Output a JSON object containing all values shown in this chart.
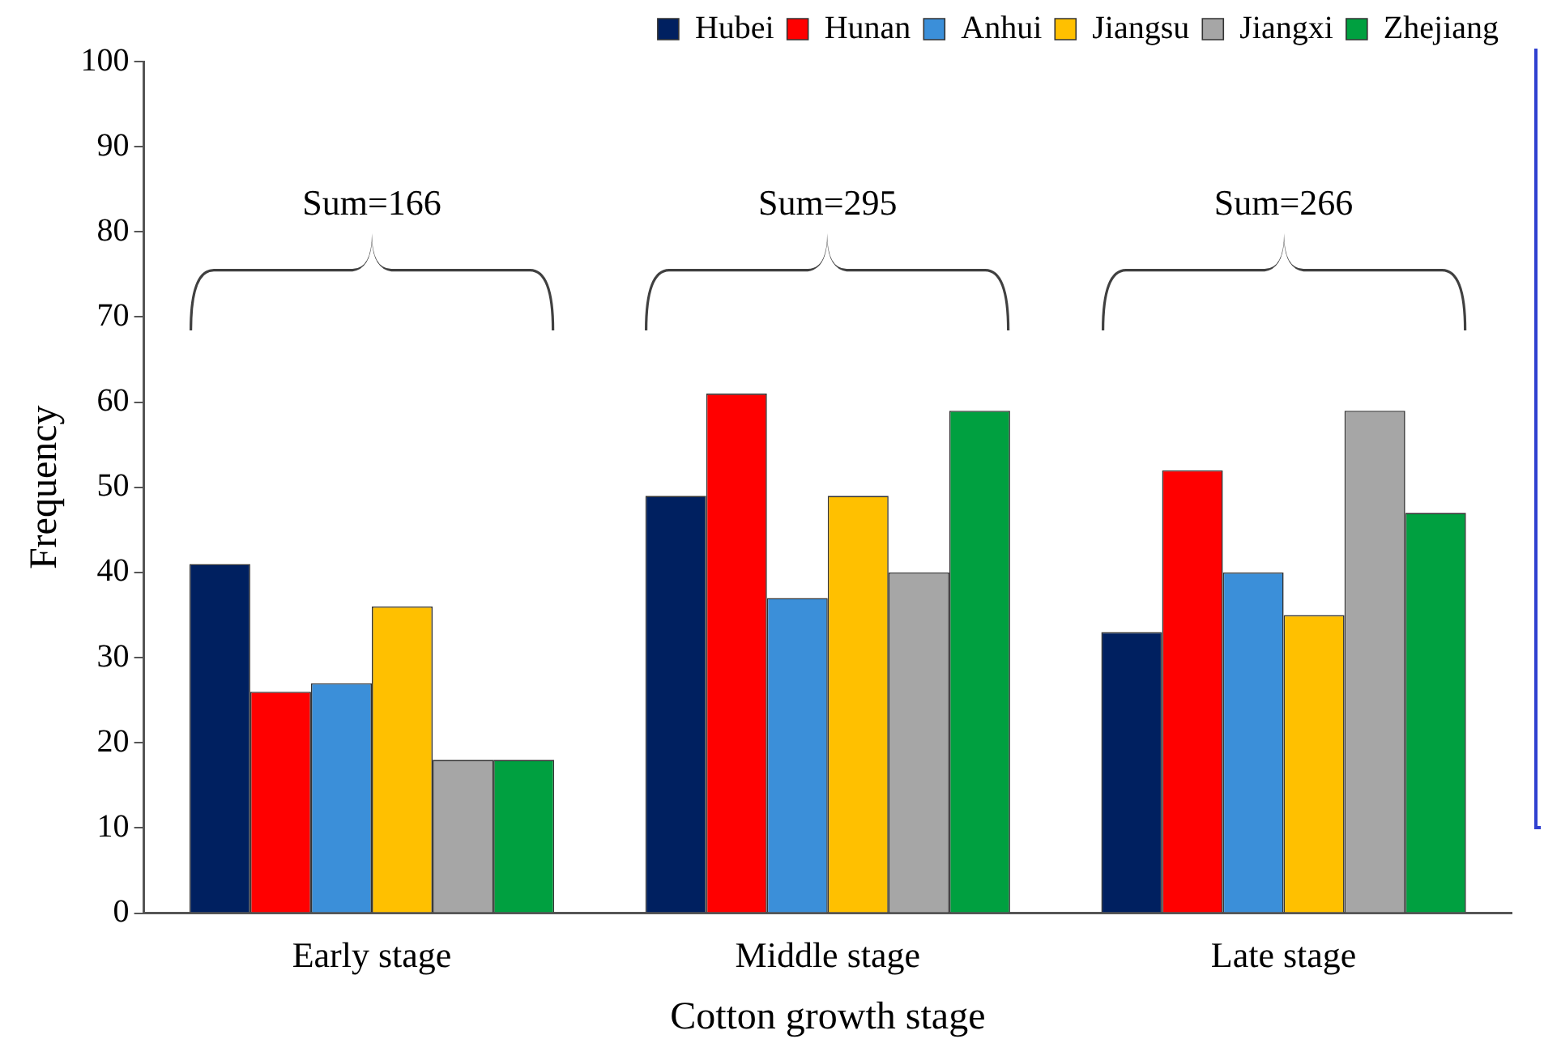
{
  "chart_data": {
    "type": "bar",
    "xlabel": "Cotton growth stage",
    "ylabel": "Frequency",
    "categories": [
      "Early stage",
      "Middle stage",
      "Late stage"
    ],
    "series": [
      {
        "name": "Hubei",
        "color": "#002060",
        "values": [
          41,
          49,
          33
        ]
      },
      {
        "name": "Hunan",
        "color": "#ff0000",
        "values": [
          26,
          61,
          52
        ]
      },
      {
        "name": "Anhui",
        "color": "#3b8fd9",
        "values": [
          27,
          37,
          40
        ]
      },
      {
        "name": "Jiangsu",
        "color": "#ffc000",
        "values": [
          36,
          49,
          35
        ]
      },
      {
        "name": "Jiangxi",
        "color": "#a6a6a6",
        "values": [
          18,
          40,
          59
        ]
      },
      {
        "name": "Zhejiang",
        "color": "#00a040",
        "values": [
          18,
          59,
          47
        ]
      }
    ],
    "ylim": [
      0,
      100
    ],
    "yticks": [
      0,
      10,
      20,
      30,
      40,
      50,
      60,
      70,
      80,
      90,
      100
    ],
    "grid": false,
    "legend": "top",
    "annotations": [
      "Sum=166",
      "Sum=295",
      "Sum=266"
    ]
  }
}
